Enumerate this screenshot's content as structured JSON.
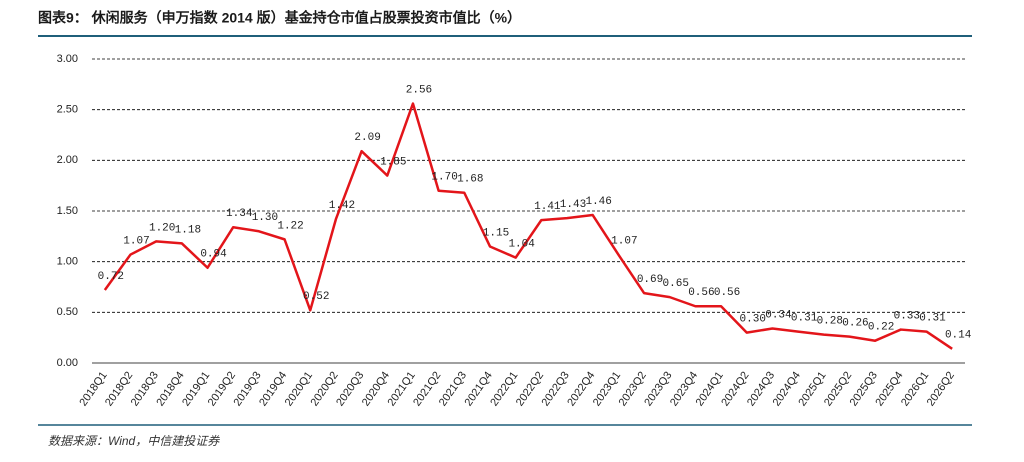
{
  "chart_data": {
    "type": "line",
    "title": "图表9：  休闲服务（申万指数 2014 版）基金持仓市值占股票投资市值比（%）",
    "source": "数据来源：Wind，中信建投证券",
    "categories": [
      "2018Q1",
      "2018Q2",
      "2018Q3",
      "2018Q4",
      "2019Q1",
      "2019Q2",
      "2019Q3",
      "2019Q4",
      "2020Q1",
      "2020Q2",
      "2020Q3",
      "2020Q4",
      "2021Q1",
      "2021Q2",
      "2021Q3",
      "2021Q4",
      "2022Q1",
      "2022Q2",
      "2022Q3",
      "2022Q4",
      "2023Q1",
      "2023Q2",
      "2023Q3",
      "2023Q4",
      "2024Q1",
      "2024Q2",
      "2024Q3",
      "2024Q4",
      "2025Q1",
      "2025Q2",
      "2025Q3",
      "2025Q4",
      "2026Q1",
      "2026Q2"
    ],
    "values": [
      0.72,
      1.07,
      1.2,
      1.18,
      0.94,
      1.34,
      1.3,
      1.22,
      0.52,
      1.42,
      2.09,
      1.85,
      2.56,
      1.7,
      1.68,
      1.15,
      1.04,
      1.41,
      1.43,
      1.46,
      1.07,
      0.69,
      0.65,
      0.56,
      0.56,
      0.3,
      0.34,
      0.31,
      0.28,
      0.26,
      0.22,
      0.33,
      0.31,
      0.14
    ],
    "value_labels": [
      "0.72",
      "1.07",
      "1.20",
      "1.18",
      "0.94",
      "1.34",
      "1.30",
      "1.22",
      "0.52",
      "1.42",
      "2.09",
      "1.85",
      "2.56",
      "1.70",
      "1.68",
      "1.15",
      "1.04",
      "1.41",
      "1.43",
      "1.46",
      "1.07",
      "0.69",
      "0.65",
      "0.56",
      "0.56",
      "0.30",
      "0.34",
      "0.31",
      "0.28",
      "0.26",
      "0.22",
      "0.33",
      "0.31",
      "0.14"
    ],
    "color": "#e3151a",
    "ylim": [
      0,
      3
    ],
    "yticks": [
      {
        "value": 0,
        "label": "0.00"
      },
      {
        "value": 0.5,
        "label": "0.50"
      },
      {
        "value": 1,
        "label": "1.00"
      },
      {
        "value": 1.5,
        "label": "1.50"
      },
      {
        "value": 2,
        "label": "2.00"
      },
      {
        "value": 2.5,
        "label": "2.50"
      },
      {
        "value": 3,
        "label": "3.00"
      }
    ],
    "grid": true
  }
}
